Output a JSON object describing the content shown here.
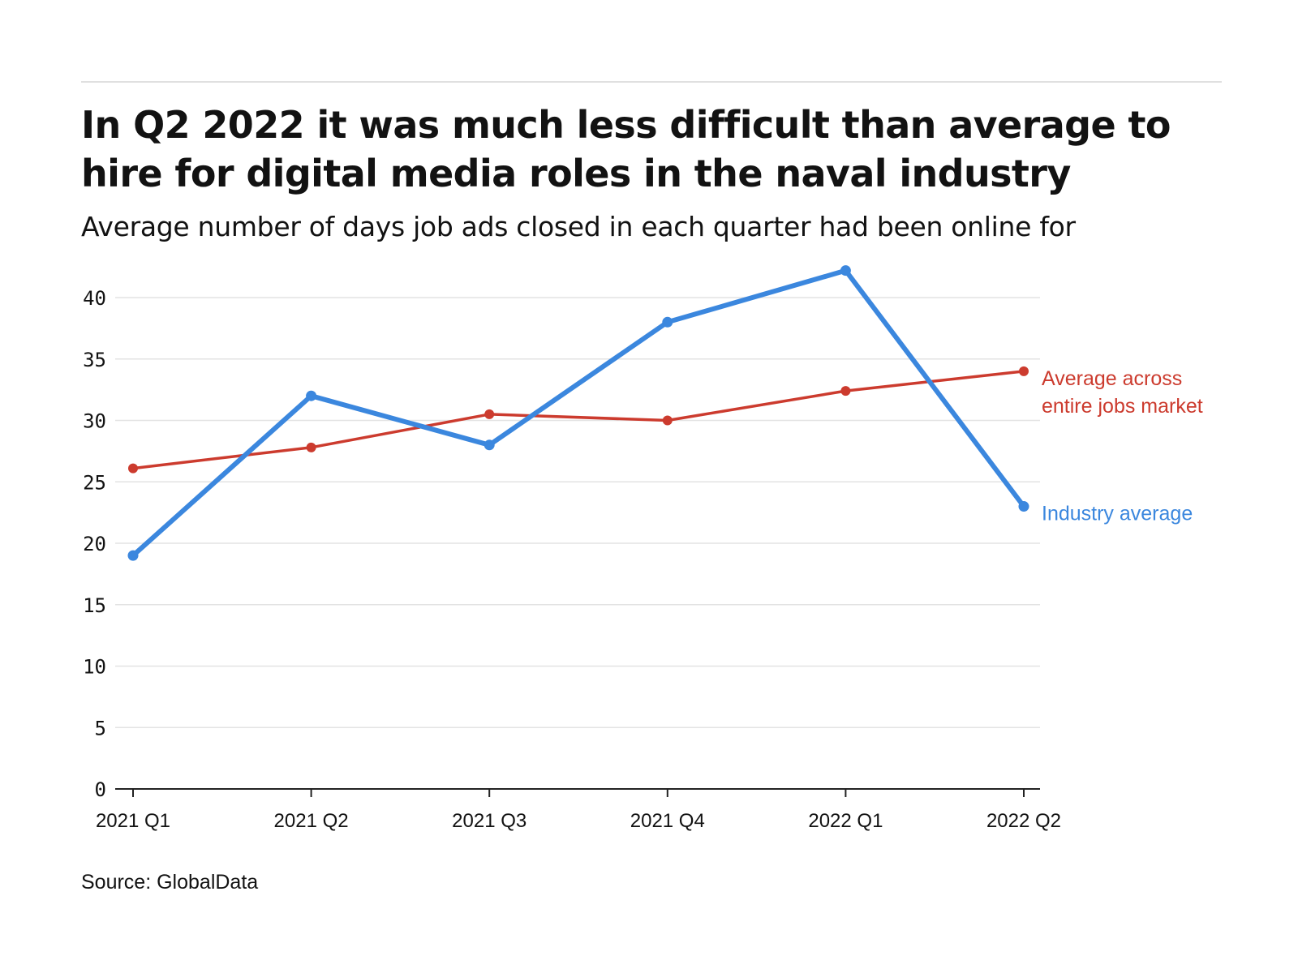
{
  "header": {
    "title": "In Q2 2022 it was much less difficult than average to hire for digital media roles in the naval industry",
    "subtitle": "Average number of days job ads closed in each quarter had been online for"
  },
  "footer": {
    "source": "Source: GlobalData"
  },
  "colors": {
    "industry": "#3b87de",
    "market": "#cc3b2e",
    "grid": "#e3e3e3",
    "axis": "#222222",
    "rule": "#e0e0e0"
  },
  "chart_data": {
    "type": "line",
    "title": "In Q2 2022 it was much less difficult than average to hire for digital media roles in the naval industry",
    "subtitle": "Average number of days job ads closed in each quarter had been online for",
    "xlabel": "",
    "ylabel": "",
    "categories": [
      "2021 Q1",
      "2021 Q2",
      "2021 Q3",
      "2021 Q4",
      "2022 Q1",
      "2022 Q2"
    ],
    "ylim": [
      0,
      40
    ],
    "yticks": [
      0,
      5,
      10,
      15,
      20,
      25,
      30,
      35,
      40
    ],
    "grid": true,
    "legend": "direct labels at right end of lines",
    "series": [
      {
        "name": "Industry average",
        "label_lines": [
          "Industry average"
        ],
        "color": "#3b87de",
        "values": [
          19,
          32,
          28,
          38,
          42.2,
          23
        ]
      },
      {
        "name": "Average across entire jobs market",
        "label_lines": [
          "Average across",
          "entire jobs market"
        ],
        "color": "#cc3b2e",
        "values": [
          26.1,
          27.8,
          30.5,
          30,
          32.4,
          34
        ]
      }
    ]
  }
}
